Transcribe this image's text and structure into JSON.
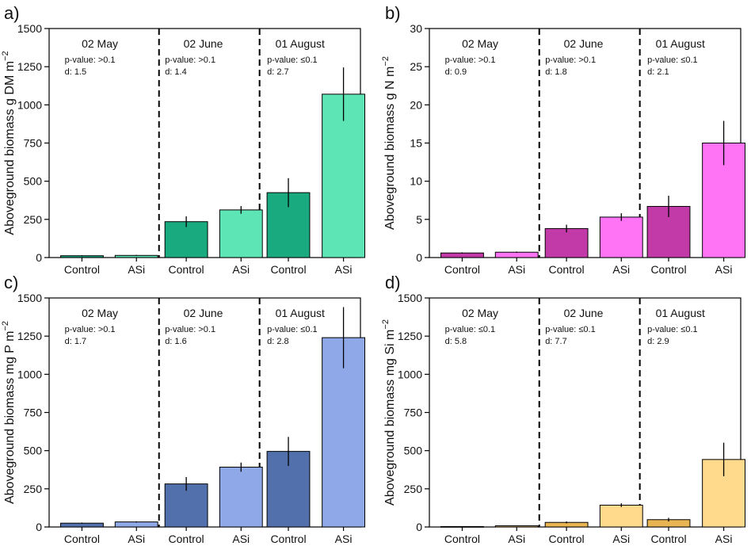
{
  "chart_data": [
    {
      "panel_label": "a)",
      "type": "bar",
      "ylabel_main": "Aboveground biomass g DM m",
      "ylabel_sup": "−2",
      "ylim": [
        0,
        1500
      ],
      "yticks": [
        "0",
        "250",
        "500",
        "750",
        "1000",
        "1250",
        "1500"
      ],
      "ytick_values": [
        0,
        250,
        500,
        750,
        1000,
        1250,
        1500
      ],
      "groups": [
        {
          "date": "02 May",
          "stat_p": "p-value: >0.1",
          "stat_d": "d: 1.5",
          "bars": [
            {
              "label": "Control",
              "value": 12,
              "err": 3
            },
            {
              "label": "ASi",
              "value": 14,
              "err": 3
            }
          ]
        },
        {
          "date": "02 June",
          "stat_p": "p-value: >0.1",
          "stat_d": "d: 1.4",
          "bars": [
            {
              "label": "Control",
              "value": 235,
              "err": 35
            },
            {
              "label": "ASi",
              "value": 312,
              "err": 25
            }
          ]
        },
        {
          "date": "01 August",
          "stat_p": "p-value: ≤0.1",
          "stat_d": "d: 2.7",
          "bars": [
            {
              "label": "Control",
              "value": 425,
              "err": 95
            },
            {
              "label": "ASi",
              "value": 1070,
              "err": 175
            }
          ]
        }
      ],
      "colors": {
        "control": "#1aaa80",
        "asi": "#5ee5b5"
      }
    },
    {
      "panel_label": "b)",
      "type": "bar",
      "ylabel_main": "Aboveground biomass g N m",
      "ylabel_sup": "−2",
      "ylim": [
        0,
        30
      ],
      "yticks": [
        "0",
        "5",
        "10",
        "15",
        "20",
        "25",
        "30"
      ],
      "ytick_values": [
        0,
        5,
        10,
        15,
        20,
        25,
        30
      ],
      "groups": [
        {
          "date": "02 May",
          "stat_p": "p-value: >0.1",
          "stat_d": "d: 0.9",
          "bars": [
            {
              "label": "Control",
              "value": 0.6,
              "err": 0.08
            },
            {
              "label": "ASi",
              "value": 0.7,
              "err": 0.08
            }
          ]
        },
        {
          "date": "02 June",
          "stat_p": "p-value: >0.1",
          "stat_d": "d: 1.8",
          "bars": [
            {
              "label": "Control",
              "value": 3.8,
              "err": 0.5
            },
            {
              "label": "ASi",
              "value": 5.3,
              "err": 0.5
            }
          ]
        },
        {
          "date": "01 August",
          "stat_p": "p-value: ≤0.1",
          "stat_d": "d: 2.1",
          "bars": [
            {
              "label": "Control",
              "value": 6.7,
              "err": 1.4
            },
            {
              "label": "ASi",
              "value": 15.0,
              "err": 2.9
            }
          ]
        }
      ],
      "colors": {
        "control": "#c13aa8",
        "asi": "#ff74f5"
      }
    },
    {
      "panel_label": "c)",
      "type": "bar",
      "ylabel_main": "Aboveground biomass mg P m",
      "ylabel_sup": "−2",
      "ylim": [
        0,
        1500
      ],
      "yticks": [
        "0",
        "250",
        "500",
        "750",
        "1000",
        "1250",
        "1500"
      ],
      "ytick_values": [
        0,
        250,
        500,
        750,
        1000,
        1250,
        1500
      ],
      "groups": [
        {
          "date": "02 May",
          "stat_p": "p-value: >0.1",
          "stat_d": "d: 1.7",
          "bars": [
            {
              "label": "Control",
              "value": 25,
              "err": 4
            },
            {
              "label": "ASi",
              "value": 33,
              "err": 4
            }
          ]
        },
        {
          "date": "02 June",
          "stat_p": "p-value: >0.1",
          "stat_d": "d: 1.6",
          "bars": [
            {
              "label": "Control",
              "value": 282,
              "err": 45
            },
            {
              "label": "ASi",
              "value": 392,
              "err": 30
            }
          ]
        },
        {
          "date": "01 August",
          "stat_p": "p-value: ≤0.1",
          "stat_d": "d: 2.8",
          "bars": [
            {
              "label": "Control",
              "value": 495,
              "err": 95
            },
            {
              "label": "ASi",
              "value": 1240,
              "err": 200
            }
          ]
        }
      ],
      "colors": {
        "control": "#5270ab",
        "asi": "#8ea8e8"
      }
    },
    {
      "panel_label": "d)",
      "type": "bar",
      "ylabel_main": "Aboveground biomass mg Si m",
      "ylabel_sup": "−2",
      "ylim": [
        0,
        1500
      ],
      "yticks": [
        "0",
        "250",
        "500",
        "750",
        "1000",
        "1250",
        "1500"
      ],
      "ytick_values": [
        0,
        250,
        500,
        750,
        1000,
        1250,
        1500
      ],
      "groups": [
        {
          "date": "02 May",
          "stat_p": "p-value: ≤0.1",
          "stat_d": "d: 5.8",
          "bars": [
            {
              "label": "Control",
              "value": 3,
              "err": 1
            },
            {
              "label": "ASi",
              "value": 8,
              "err": 2
            }
          ]
        },
        {
          "date": "02 June",
          "stat_p": "p-value: ≤0.1",
          "stat_d": "d: 7.7",
          "bars": [
            {
              "label": "Control",
              "value": 30,
              "err": 6
            },
            {
              "label": "ASi",
              "value": 143,
              "err": 12
            }
          ]
        },
        {
          "date": "01 August",
          "stat_p": "p-value: ≤0.1",
          "stat_d": "d: 2.9",
          "bars": [
            {
              "label": "Control",
              "value": 48,
              "err": 12
            },
            {
              "label": "ASi",
              "value": 442,
              "err": 110
            }
          ]
        }
      ],
      "colors": {
        "control": "#e9b552",
        "asi": "#ffd98c"
      }
    }
  ]
}
